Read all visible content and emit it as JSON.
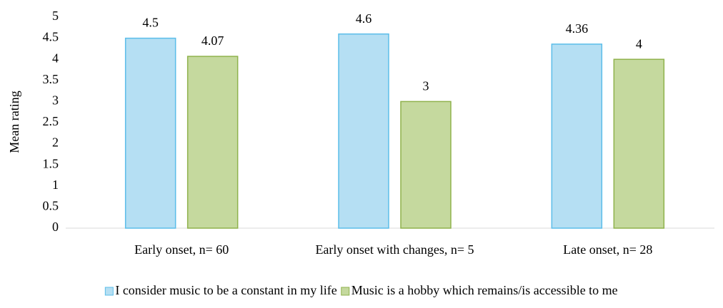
{
  "chart_data": {
    "type": "bar",
    "categories": [
      "Early onset, n= 60",
      "Early onset with changes, n= 5",
      "Late onset, n= 28"
    ],
    "series": [
      {
        "name": "I consider music to be a constant in my life",
        "color": "#b5dff3",
        "values": [
          4.5,
          4.6,
          4.36
        ]
      },
      {
        "name": "Music is a hobby which remains/is accessible to me",
        "color": "#c5d99e",
        "values": [
          4.07,
          3,
          4
        ]
      }
    ],
    "y_label": "Mean rating",
    "ylim": [
      0,
      5
    ],
    "yticks": [
      0,
      0.5,
      1,
      1.5,
      2,
      2.5,
      3,
      3.5,
      4,
      4.5,
      5
    ],
    "grid": false,
    "legend": "bottom"
  }
}
